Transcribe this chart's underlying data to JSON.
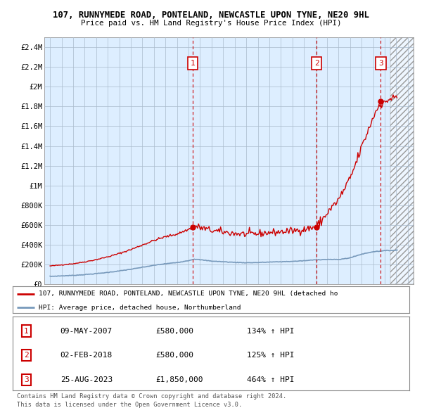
{
  "title_line1": "107, RUNNYMEDE ROAD, PONTELAND, NEWCASTLE UPON TYNE, NE20 9HL",
  "title_line2": "Price paid vs. HM Land Registry's House Price Index (HPI)",
  "hpi_color": "#7799bb",
  "price_color": "#cc0000",
  "bg_color": "#ddeeff",
  "grid_color": "#aabbcc",
  "sale_dates": [
    2007.36,
    2018.09,
    2023.65
  ],
  "sale_prices": [
    580000,
    580000,
    1850000
  ],
  "sale_labels": [
    "1",
    "2",
    "3"
  ],
  "legend_line1": "107, RUNNYMEDE ROAD, PONTELAND, NEWCASTLE UPON TYNE, NE20 9HL (detached ho",
  "legend_line2": "HPI: Average price, detached house, Northumberland",
  "table_data": [
    [
      "1",
      "09-MAY-2007",
      "£580,000",
      "134% ↑ HPI"
    ],
    [
      "2",
      "02-FEB-2018",
      "£580,000",
      "125% ↑ HPI"
    ],
    [
      "3",
      "25-AUG-2023",
      "£1,850,000",
      "464% ↑ HPI"
    ]
  ],
  "footnote1": "Contains HM Land Registry data © Crown copyright and database right 2024.",
  "footnote2": "This data is licensed under the Open Government Licence v3.0.",
  "xmin": 1994.5,
  "xmax": 2026.5,
  "ymin": 0,
  "ymax": 2500000,
  "hatch_start": 2024.5
}
